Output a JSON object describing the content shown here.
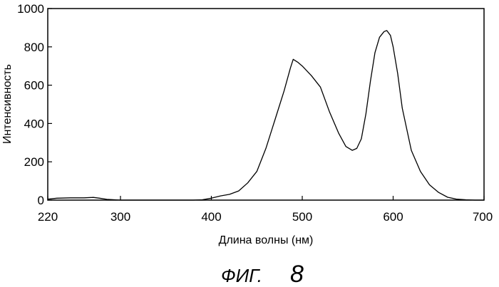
{
  "figure_caption": {
    "prefix": "ФИГ.",
    "number": "8"
  },
  "chart_data": {
    "type": "line",
    "title": "",
    "xlabel": "Длина волны (нм)",
    "ylabel": "Интенсивность",
    "xlim": [
      220,
      700
    ],
    "ylim": [
      0,
      1000
    ],
    "xticks": [
      220,
      300,
      400,
      500,
      600,
      700
    ],
    "yticks": [
      0,
      200,
      400,
      600,
      800,
      1000
    ],
    "grid": false,
    "legend": "none",
    "line_color": "#000000",
    "series": [
      {
        "x": [
          220,
          230,
          245,
          260,
          270,
          277,
          285,
          300,
          320,
          350,
          380,
          390,
          400,
          410,
          420,
          430,
          440,
          450,
          460,
          470,
          480,
          487,
          490,
          495,
          500,
          510,
          520,
          530,
          540,
          548,
          555,
          560,
          565,
          570,
          575,
          580,
          585,
          590,
          593,
          597,
          600,
          605,
          610,
          620,
          630,
          640,
          650,
          660,
          670,
          680,
          690,
          700
        ],
        "y": [
          5,
          10,
          12,
          12,
          14,
          10,
          4,
          0,
          0,
          0,
          0,
          2,
          10,
          22,
          30,
          48,
          90,
          150,
          270,
          420,
          570,
          690,
          735,
          720,
          700,
          650,
          590,
          460,
          350,
          280,
          260,
          270,
          320,
          450,
          620,
          770,
          850,
          880,
          885,
          860,
          800,
          660,
          480,
          260,
          150,
          80,
          40,
          15,
          5,
          2,
          0,
          0
        ]
      }
    ]
  }
}
